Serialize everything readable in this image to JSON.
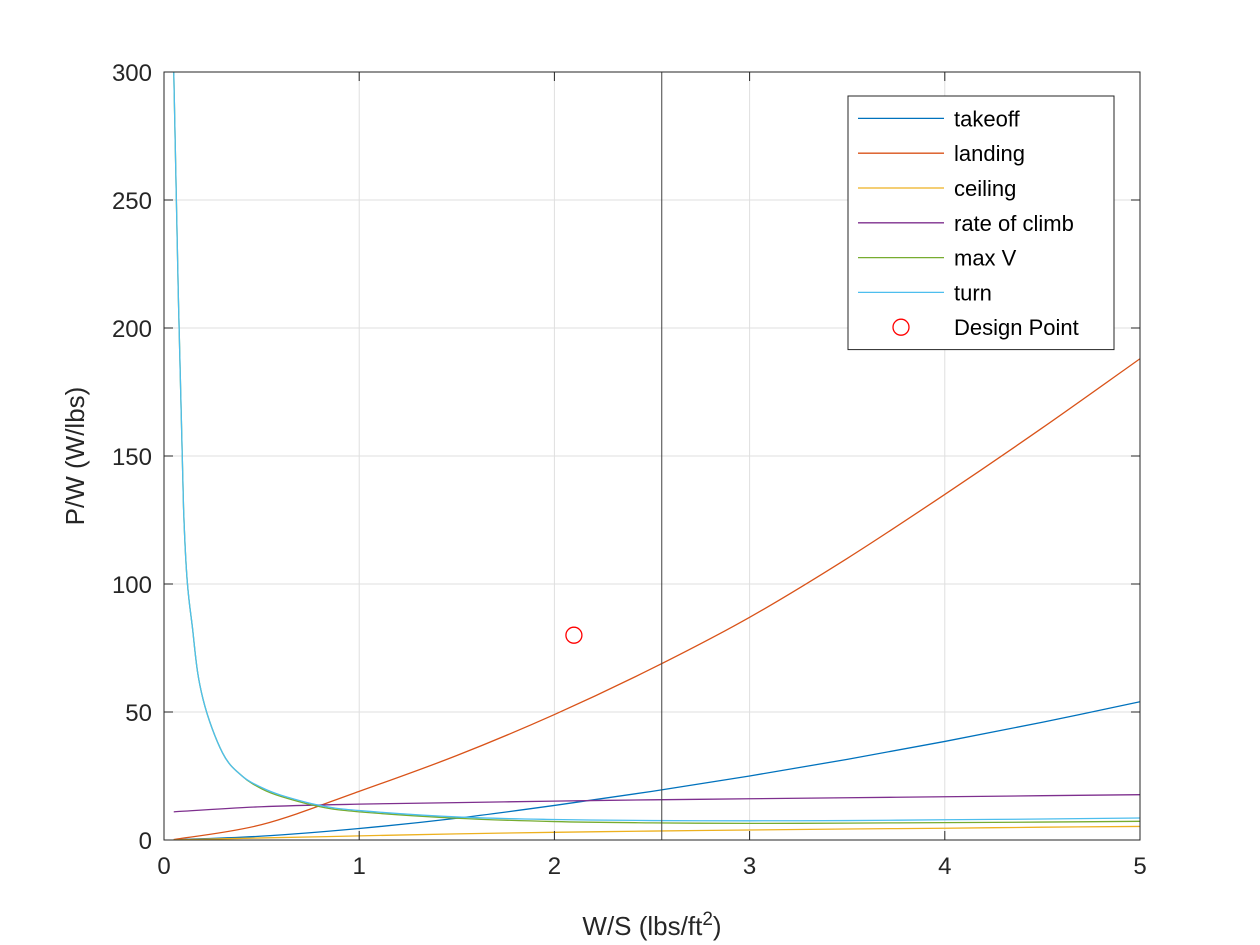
{
  "chart_data": {
    "type": "line",
    "xlabel": "W/S (lbs/ft",
    "xlabel_sup": "2",
    "xlabel_close": ")",
    "ylabel": "P/W (W/lbs)",
    "xlim": [
      0,
      5
    ],
    "ylim": [
      0,
      300
    ],
    "xticks": [
      "0",
      "1",
      "2",
      "3",
      "4",
      "5"
    ],
    "yticks": [
      "0",
      "50",
      "100",
      "150",
      "200",
      "250",
      "300"
    ],
    "grid": true,
    "legend_position": "top-right",
    "vertical_line_x": 2.55,
    "series": [
      {
        "name": "takeoff",
        "color": "#0072BD",
        "x": [
          0.05,
          0.5,
          1.0,
          1.5,
          2.0,
          2.5,
          3.0,
          3.5,
          4.0,
          4.5,
          5.0
        ],
        "y": [
          0.1,
          1.5,
          4.5,
          8.5,
          13.5,
          19.0,
          25.0,
          31.5,
          38.5,
          46.0,
          54.0
        ]
      },
      {
        "name": "landing",
        "color": "#D95319",
        "x": [
          0.05,
          0.5,
          1.0,
          1.5,
          2.0,
          2.5,
          3.0,
          3.5,
          4.0,
          4.5,
          5.0
        ],
        "y": [
          0.2,
          6.0,
          19.0,
          33.0,
          49.0,
          67.0,
          87.0,
          110.0,
          135.0,
          161.0,
          188.0
        ]
      },
      {
        "name": "ceiling",
        "color": "#EDB120",
        "x": [
          0.05,
          0.5,
          1.0,
          1.5,
          2.0,
          2.5,
          3.0,
          3.5,
          4.0,
          4.5,
          5.0
        ],
        "y": [
          0.05,
          0.8,
          1.6,
          2.4,
          3.0,
          3.5,
          3.9,
          4.3,
          4.6,
          5.0,
          5.3
        ]
      },
      {
        "name": "rate of climb",
        "color": "#7E2F8E",
        "x": [
          0.05,
          0.5,
          1.0,
          1.5,
          2.0,
          2.5,
          3.0,
          3.5,
          4.0,
          4.5,
          5.0
        ],
        "y": [
          11.0,
          13.0,
          14.0,
          14.6,
          15.2,
          15.7,
          16.1,
          16.5,
          16.9,
          17.3,
          17.7
        ]
      },
      {
        "name": "max V",
        "color": "#77AC30",
        "x": [
          0.05,
          0.1,
          0.15,
          0.2,
          0.3,
          0.4,
          0.5,
          0.6,
          0.8,
          1.0,
          1.5,
          2.0,
          2.5,
          3.0,
          3.5,
          4.0,
          4.5,
          5.0
        ],
        "y": [
          300,
          130,
          80,
          55,
          34,
          25,
          20,
          17,
          13,
          11,
          8.5,
          7.2,
          6.7,
          6.5,
          6.6,
          6.8,
          7.0,
          7.3
        ]
      },
      {
        "name": "turn",
        "color": "#4DBEEE",
        "x": [
          0.05,
          0.1,
          0.15,
          0.2,
          0.3,
          0.4,
          0.5,
          0.6,
          0.8,
          1.0,
          1.5,
          2.0,
          2.5,
          3.0,
          3.5,
          4.0,
          4.5,
          5.0
        ],
        "y": [
          300,
          130,
          80,
          55,
          34,
          25,
          20.5,
          17.5,
          13.5,
          11.5,
          9.0,
          8.0,
          7.6,
          7.5,
          7.6,
          7.9,
          8.2,
          8.6
        ]
      }
    ],
    "points": [
      {
        "name": "Design Point",
        "color": "#FF0000",
        "x": 2.1,
        "y": 80
      }
    ]
  }
}
